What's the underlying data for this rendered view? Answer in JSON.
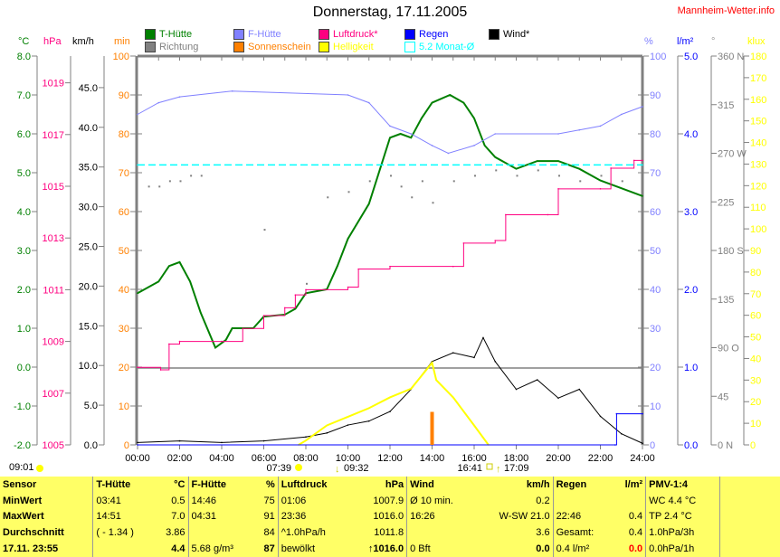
{
  "title": "Donnerstag, 17.11.2005",
  "brand": "Mannheim-Wetter.info",
  "legend": [
    {
      "label": "T-Hütte",
      "color": "#008000"
    },
    {
      "label": "Richtung",
      "color": "#808080"
    },
    {
      "label": "F-Hütte",
      "color": "#8080ff"
    },
    {
      "label": "Sonnenschein",
      "color": "#ff8000"
    },
    {
      "label": "Luftdruck*",
      "color": "#ff0080"
    },
    {
      "label": "Helligkeit",
      "color": "#ffff00"
    },
    {
      "label": "Regen",
      "color": "#0000ff"
    },
    {
      "label": "5.2 Monat-Ø",
      "color": "#00ffff"
    },
    {
      "label": "Wind*",
      "color": "#000000"
    }
  ],
  "units": {
    "temp": "°C",
    "press": "hPa",
    "wind": "km/h",
    "sun": "min",
    "hum": "%",
    "rain": "l/m²",
    "dir": "°",
    "lux": "klux"
  },
  "sun_events": {
    "first": "09:01",
    "sunrise": "07:39",
    "t1": "09:32",
    "t2": "16:41",
    "sunset": "17:09"
  },
  "chart_data": {
    "type": "line",
    "title": "Donnerstag, 17.11.2005",
    "x_ticks": [
      "00:00",
      "02:00",
      "04:00",
      "06:00",
      "08:00",
      "10:00",
      "12:00",
      "14:00",
      "16:00",
      "18:00",
      "20:00",
      "22:00",
      "24:00"
    ],
    "xlim": [
      0,
      24
    ],
    "axes": {
      "temp": {
        "range": [
          -2,
          8
        ],
        "ticks": [
          "8.0",
          "7.0",
          "6.0",
          "5.0",
          "4.0",
          "3.0",
          "2.0",
          "1.0",
          "0.0",
          "-1.0",
          "-2.0"
        ]
      },
      "press": {
        "range": [
          1005,
          1020
        ],
        "ticks": [
          "1019",
          "1017",
          "1015",
          "1013",
          "1011",
          "1009",
          "1007",
          "1005"
        ]
      },
      "wind": {
        "range": [
          0,
          49
        ],
        "ticks": [
          "45.0",
          "40.0",
          "35.0",
          "30.0",
          "25.0",
          "20.0",
          "15.0",
          "10.0",
          "5.0",
          "0.0"
        ]
      },
      "sun": {
        "range": [
          0,
          100
        ],
        "ticks": [
          "100",
          "90",
          "80",
          "70",
          "60",
          "50",
          "40",
          "30",
          "20",
          "10",
          "0"
        ]
      },
      "hum": {
        "range": [
          0,
          100
        ],
        "ticks": [
          "100",
          "90",
          "80",
          "70",
          "60",
          "50",
          "40",
          "30",
          "20",
          "10",
          "0"
        ]
      },
      "rain": {
        "range": [
          0,
          5
        ],
        "ticks": [
          "5.0",
          "4.0",
          "3.0",
          "2.0",
          "1.0",
          "0.0"
        ]
      },
      "dir": {
        "range": [
          0,
          360
        ],
        "ticks": [
          "360 N",
          "315",
          "270 W",
          "225",
          "180 S",
          "135",
          "90  O",
          "45",
          "0    N"
        ]
      },
      "lux": {
        "range": [
          0,
          180
        ],
        "ticks": [
          "180",
          "170",
          "160",
          "150",
          "140",
          "130",
          "120",
          "110",
          "100",
          "90",
          "80",
          "70",
          "60",
          "50",
          "40",
          "30",
          "20",
          "10",
          "0"
        ]
      }
    },
    "series": [
      {
        "name": "T-Hütte",
        "axis": "temp",
        "color": "#008000",
        "x": [
          0,
          1,
          1.5,
          2,
          2.5,
          3,
          3.7,
          4.2,
          4.5,
          5.5,
          6,
          7,
          7.5,
          8,
          9,
          9.5,
          10,
          11,
          12,
          12.5,
          13,
          13.5,
          14,
          14.85,
          15.5,
          16,
          16.5,
          17,
          18,
          19,
          20,
          21,
          22,
          23,
          24
        ],
        "y": [
          1.9,
          2.2,
          2.6,
          2.7,
          2.2,
          1.4,
          0.5,
          0.7,
          1.0,
          1.0,
          1.3,
          1.35,
          1.5,
          1.9,
          2.0,
          2.6,
          3.3,
          4.2,
          5.9,
          6.0,
          5.9,
          6.4,
          6.8,
          7.0,
          6.8,
          6.4,
          5.7,
          5.4,
          5.1,
          5.3,
          5.3,
          5.1,
          4.8,
          4.6,
          4.4
        ]
      },
      {
        "name": "F-Hütte",
        "axis": "hum",
        "color": "#8080ff",
        "x": [
          0,
          1,
          2,
          4.5,
          10,
          11,
          12,
          13,
          14,
          14.77,
          16,
          17,
          20,
          21,
          22,
          23,
          24
        ],
        "y": [
          85,
          88,
          89.5,
          91,
          90,
          88,
          82,
          80,
          77,
          75,
          77,
          80,
          80,
          81,
          82,
          85,
          87
        ]
      },
      {
        "name": "Luftdruck*",
        "axis": "press",
        "color": "#ff0080",
        "x": [
          0,
          1.1,
          1.5,
          2,
          4,
          5,
          6,
          7,
          7.5,
          8,
          10,
          10.5,
          12,
          15,
          15.5,
          17,
          17.5,
          19.5,
          20,
          22,
          22.5,
          23.6,
          24
        ],
        "y": [
          1008.0,
          1007.9,
          1008.9,
          1009.0,
          1009.0,
          1009.5,
          1010.0,
          1010.3,
          1010.8,
          1011.0,
          1011.1,
          1011.8,
          1011.9,
          1011.9,
          1012.8,
          1012.9,
          1013.9,
          1013.9,
          1014.9,
          1014.9,
          1015.7,
          1016.0,
          1016.0
        ]
      },
      {
        "name": "Wind*",
        "axis": "wind",
        "color": "#000000",
        "x": [
          0,
          2,
          4,
          6,
          8,
          9,
          10,
          11,
          12,
          13,
          14,
          15,
          16,
          16.43,
          17,
          18,
          19,
          20,
          21,
          22,
          23,
          24
        ],
        "y": [
          0.3,
          0.5,
          0.3,
          0.5,
          1.0,
          1.5,
          2.5,
          3.0,
          4.2,
          7.0,
          10.5,
          11.6,
          11.0,
          13.5,
          10.5,
          7.0,
          8.2,
          5.9,
          7.0,
          3.6,
          1.4,
          0.2
        ]
      },
      {
        "name": "Helligkeit",
        "axis": "lux",
        "color": "#ffff00",
        "x": [
          7.65,
          8,
          9,
          10,
          11,
          12,
          13,
          14,
          14.2,
          15,
          16,
          16.68
        ],
        "y": [
          0,
          2,
          9,
          13,
          17,
          22,
          26,
          38,
          30,
          22,
          9,
          0
        ]
      },
      {
        "name": "Regen",
        "axis": "rain",
        "color": "#0000ff",
        "x": [
          0,
          22.7,
          22.77,
          24
        ],
        "y": [
          0,
          0,
          0.4,
          0.4
        ]
      },
      {
        "name": "5.2 Monat-Ø",
        "axis": "temp",
        "color": "#00ffff",
        "x": [
          0,
          24
        ],
        "y": [
          5.2,
          5.2
        ]
      }
    ],
    "sunshine": {
      "axis": "sun",
      "x": [
        14.0
      ],
      "y": [
        5
      ]
    },
    "direction": {
      "axis": "dir",
      "x": [
        0.5,
        1,
        1.5,
        2,
        2.5,
        3,
        6,
        8,
        9,
        10,
        11,
        12,
        12.5,
        13,
        13.5,
        14,
        15,
        16,
        17,
        18,
        19,
        20,
        21,
        22,
        23
      ],
      "y": [
        240,
        240,
        245,
        245,
        250,
        250,
        200,
        150,
        230,
        235,
        245,
        250,
        240,
        230,
        245,
        225,
        245,
        250,
        255,
        250,
        255,
        250,
        245,
        250,
        245
      ]
    }
  },
  "table": {
    "headers": [
      "Sensor",
      "T-Hütte",
      "°C",
      "F-Hütte",
      "%",
      "Luftdruck",
      "hPa",
      "Wind",
      "km/h",
      "Regen",
      "l/m²",
      "PMV-1:4"
    ],
    "rows": [
      [
        "MinWert",
        "03:41",
        "0.5",
        "14:46",
        "75",
        "01:06",
        "1007.9",
        "Ø 10 min.",
        "0.2",
        "",
        "",
        "WC 4.4 °C"
      ],
      [
        "MaxWert",
        "14:51",
        "7.0",
        "04:31",
        "91",
        "23:36",
        "1016.0",
        "16:26",
        "W-SW 21.0",
        "22:46",
        "0.4",
        "TP 2.4 °C"
      ],
      [
        "Durchschnitt",
        "( - 1.34 )",
        "3.86",
        "",
        "84",
        "^1.0hPa/h",
        "1011.8",
        "",
        "3.6",
        "Gesamt:",
        "0.4",
        "1.0hPa/3h"
      ],
      [
        "17.11. 23:55",
        "",
        "4.4",
        "5.68 g/m³",
        "87",
        "bewölkt",
        "↑1016.0",
        "0 Bft",
        "0.0",
        "0.4 l/m²",
        "0.0",
        "0.0hPa/1h"
      ]
    ]
  }
}
